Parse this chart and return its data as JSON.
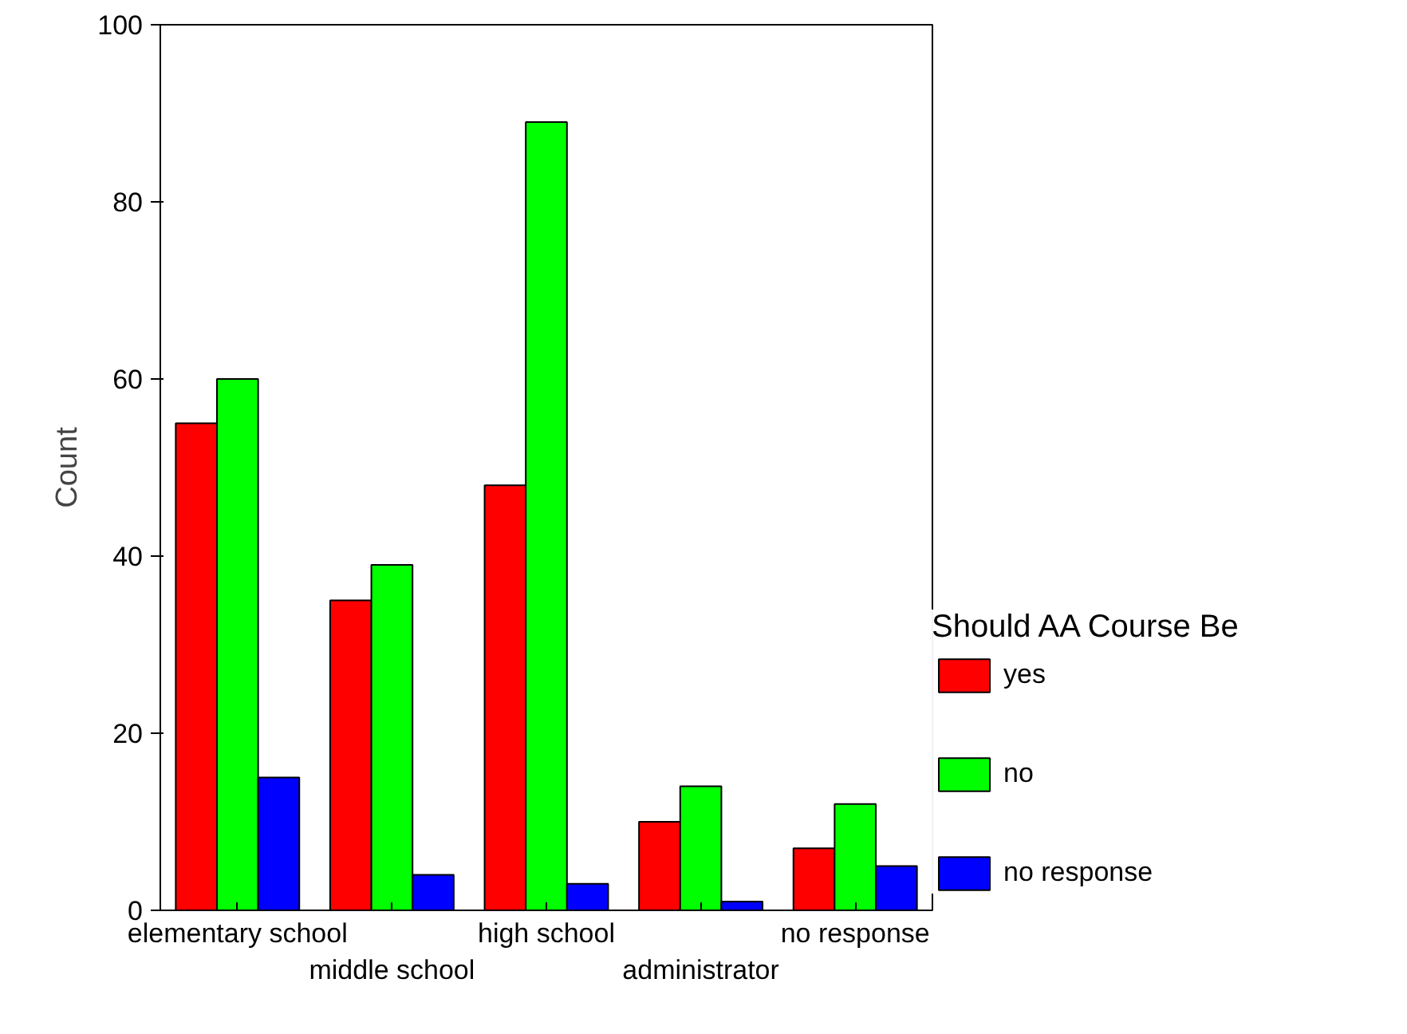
{
  "chart_data": {
    "type": "bar",
    "ylabel": "Count",
    "legend_title": "Should AA Course Be",
    "categories": [
      "elementary school",
      "middle school",
      "high school",
      "administrator",
      "no response"
    ],
    "series": [
      {
        "name": "yes",
        "color": "#ff0000",
        "values": [
          55,
          35,
          48,
          10,
          7
        ]
      },
      {
        "name": "no",
        "color": "#00ff00",
        "values": [
          60,
          39,
          89,
          14,
          12
        ]
      },
      {
        "name": "no response",
        "color": "#0000ff",
        "values": [
          15,
          4,
          3,
          1,
          5
        ]
      }
    ],
    "ylim": [
      0,
      100
    ],
    "yticks": [
      0,
      20,
      40,
      60,
      80,
      100
    ],
    "grid": false,
    "legend": "right"
  }
}
